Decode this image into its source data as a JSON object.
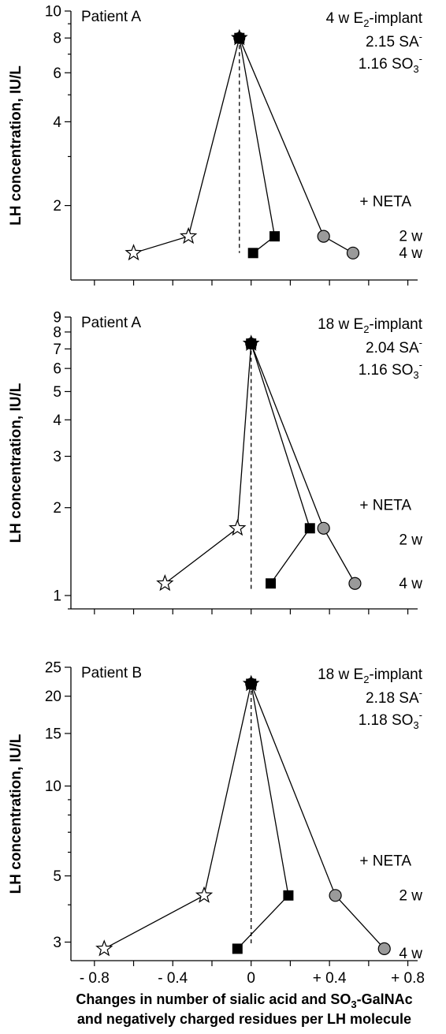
{
  "chart_data": [
    {
      "type": "scatter",
      "panel_label": "Patient A",
      "treatment": "4 w E2-implant",
      "treatment_parts": [
        "4 w E",
        "2",
        "-implant"
      ],
      "sa_text": "2.15 SA",
      "sa_sup": "-",
      "so3_text": "1.16 SO",
      "so3_sub": "3",
      "so3_sup": "-",
      "neta_label": "+ NETA",
      "week_labels": [
        {
          "text": "2 w",
          "y": 1.55
        },
        {
          "text": "4 w",
          "y": 1.35
        }
      ],
      "ylabel": "LH concentration, IU/L",
      "yscale": "log",
      "ylim": [
        1.08,
        10
      ],
      "xlim": [
        -0.92,
        0.85
      ],
      "yticks": [
        2,
        4,
        6,
        8,
        10
      ],
      "ytick_labels": [
        "2",
        "4",
        "6",
        "8",
        "10"
      ],
      "show_xtick_labels": false,
      "xticks": [
        -0.8,
        -0.6,
        -0.4,
        -0.2,
        0,
        0.2,
        0.4,
        0.6,
        0.8
      ],
      "xtick_labels": [
        "- 0.8",
        "",
        "- 0.4",
        "",
        "0",
        "",
        "+ 0.4",
        "",
        "+ 0.8"
      ],
      "baseline": {
        "x": -0.06,
        "y": 8.0
      },
      "dashed_line": {
        "x": -0.06,
        "y_from": 1.35,
        "y_to": 8.0
      },
      "series": [
        {
          "marker": "star",
          "points": [
            {
              "x": -0.6,
              "y": 1.35
            },
            {
              "x": -0.32,
              "y": 1.55
            }
          ]
        },
        {
          "marker": "square",
          "points": [
            {
              "x": 0.01,
              "y": 1.35
            },
            {
              "x": 0.12,
              "y": 1.55
            }
          ]
        },
        {
          "marker": "circle",
          "points": [
            {
              "x": 0.52,
              "y": 1.35
            },
            {
              "x": 0.37,
              "y": 1.55
            }
          ]
        }
      ]
    },
    {
      "type": "scatter",
      "panel_label": "Patient A",
      "treatment": "18 w E2-implant",
      "treatment_parts": [
        "18 w E",
        "2",
        "-implant"
      ],
      "sa_text": "2.04 SA",
      "sa_sup": "-",
      "so3_text": "1.16 SO",
      "so3_sub": "3",
      "so3_sup": "-",
      "neta_label": "+ NETA",
      "week_labels": [
        {
          "text": "2 w",
          "y": 1.55
        },
        {
          "text": "4 w",
          "y": 1.1
        }
      ],
      "ylabel": "LH concentration, IU/L",
      "yscale": "log",
      "ylim": [
        0.9,
        9
      ],
      "xlim": [
        -0.92,
        0.85
      ],
      "yticks": [
        1,
        2,
        3,
        4,
        5,
        6,
        7,
        8,
        9
      ],
      "ytick_labels": [
        "1",
        "2",
        "3",
        "4",
        "5",
        "6",
        "7",
        "8",
        "9"
      ],
      "show_xtick_labels": false,
      "xticks": [
        -0.8,
        -0.6,
        -0.4,
        -0.2,
        0,
        0.2,
        0.4,
        0.6,
        0.8
      ],
      "xtick_labels": [
        "- 0.8",
        "",
        "- 0.4",
        "",
        "0",
        "",
        "+ 0.4",
        "",
        "+ 0.8"
      ],
      "baseline": {
        "x": 0.0,
        "y": 7.3
      },
      "dashed_line": {
        "x": 0.0,
        "y_from": 1.05,
        "y_to": 7.3
      },
      "series": [
        {
          "marker": "star",
          "points": [
            {
              "x": -0.44,
              "y": 1.1
            },
            {
              "x": -0.07,
              "y": 1.7
            }
          ]
        },
        {
          "marker": "square",
          "points": [
            {
              "x": 0.1,
              "y": 1.1
            },
            {
              "x": 0.3,
              "y": 1.7
            }
          ]
        },
        {
          "marker": "circle",
          "points": [
            {
              "x": 0.53,
              "y": 1.1
            },
            {
              "x": 0.37,
              "y": 1.7
            }
          ]
        }
      ]
    },
    {
      "type": "scatter",
      "panel_label": "Patient B",
      "treatment": "18 w E2-implant",
      "treatment_parts": [
        "18 w E",
        "2",
        "-implant"
      ],
      "sa_text": "2.18 SA",
      "sa_sup": "-",
      "so3_text": "1.18 SO",
      "so3_sub": "3",
      "so3_sup": "-",
      "neta_label": "+ NETA",
      "week_labels": [
        {
          "text": "2 w",
          "y": 4.3
        },
        {
          "text": "4 w",
          "y": 2.75
        }
      ],
      "ylabel": "LH concentration, IU/L",
      "yscale": "log",
      "ylim": [
        2.6,
        25
      ],
      "xlim": [
        -0.92,
        0.85
      ],
      "yticks": [
        3,
        5,
        10,
        15,
        20,
        25
      ],
      "ytick_labels": [
        "3",
        "5",
        "10",
        "15",
        "20",
        "25"
      ],
      "show_xtick_labels": true,
      "xticks": [
        -0.8,
        -0.6,
        -0.4,
        -0.2,
        0,
        0.2,
        0.4,
        0.6,
        0.8
      ],
      "xtick_labels": [
        "- 0.8",
        "",
        "- 0.4",
        "",
        "0",
        "",
        "+ 0.4",
        "",
        "+ 0.8"
      ],
      "baseline": {
        "x": 0.0,
        "y": 22.0
      },
      "dashed_line": {
        "x": 0.0,
        "y_from": 2.9,
        "y_to": 22.0
      },
      "series": [
        {
          "marker": "star",
          "points": [
            {
              "x": -0.75,
              "y": 2.85
            },
            {
              "x": -0.24,
              "y": 4.3
            }
          ]
        },
        {
          "marker": "square",
          "points": [
            {
              "x": -0.07,
              "y": 2.85
            },
            {
              "x": 0.19,
              "y": 4.3
            }
          ]
        },
        {
          "marker": "circle",
          "points": [
            {
              "x": 0.68,
              "y": 2.85
            },
            {
              "x": 0.43,
              "y": 4.3
            }
          ]
        }
      ]
    }
  ],
  "xlabel_line1": "Changes in number of sialic acid and SO",
  "xlabel_line1_sub": "3",
  "xlabel_line1_end": "-GalNAc",
  "xlabel_line2": "and negatively charged residues per LH molecule"
}
